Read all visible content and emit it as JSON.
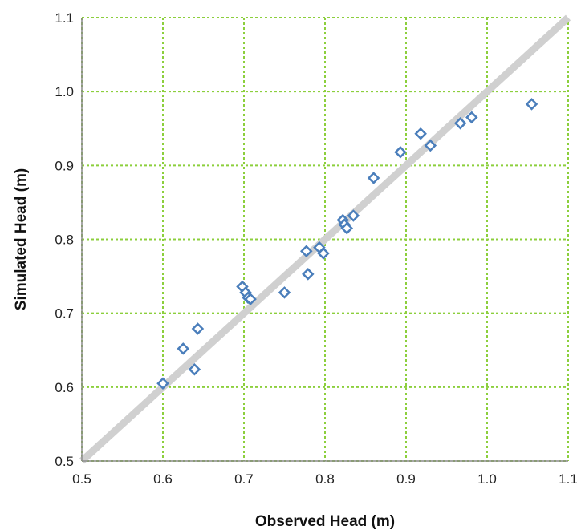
{
  "chart_data": {
    "type": "scatter",
    "title": "",
    "xlabel": "Observed Head (m)",
    "ylabel": "Simulated Head (m)",
    "xlim": [
      0.5,
      1.1
    ],
    "ylim": [
      0.5,
      1.1
    ],
    "x_ticks": [
      "0.5",
      "0.6",
      "0.7",
      "0.8",
      "0.9",
      "1.0",
      "1.1"
    ],
    "y_ticks": [
      "0.5",
      "0.6",
      "0.7",
      "0.8",
      "0.9",
      "1.0",
      "1.1"
    ],
    "grid": true,
    "grid_color": "#8ccf3c",
    "reference_line": {
      "from": [
        0.5,
        0.5
      ],
      "to": [
        1.1,
        1.1
      ],
      "color": "#d0d0d0"
    },
    "marker": "open-diamond",
    "marker_color": "#4a7ebb",
    "points": [
      {
        "x": 0.6,
        "y": 0.605
      },
      {
        "x": 0.625,
        "y": 0.652
      },
      {
        "x": 0.639,
        "y": 0.624
      },
      {
        "x": 0.643,
        "y": 0.679
      },
      {
        "x": 0.698,
        "y": 0.736
      },
      {
        "x": 0.702,
        "y": 0.728
      },
      {
        "x": 0.705,
        "y": 0.721
      },
      {
        "x": 0.708,
        "y": 0.719
      },
      {
        "x": 0.75,
        "y": 0.728
      },
      {
        "x": 0.777,
        "y": 0.784
      },
      {
        "x": 0.779,
        "y": 0.753
      },
      {
        "x": 0.793,
        "y": 0.789
      },
      {
        "x": 0.798,
        "y": 0.781
      },
      {
        "x": 0.822,
        "y": 0.826
      },
      {
        "x": 0.824,
        "y": 0.82
      },
      {
        "x": 0.827,
        "y": 0.815
      },
      {
        "x": 0.835,
        "y": 0.832
      },
      {
        "x": 0.86,
        "y": 0.883
      },
      {
        "x": 0.893,
        "y": 0.918
      },
      {
        "x": 0.918,
        "y": 0.943
      },
      {
        "x": 0.93,
        "y": 0.927
      },
      {
        "x": 0.967,
        "y": 0.957
      },
      {
        "x": 0.981,
        "y": 0.965
      },
      {
        "x": 1.055,
        "y": 0.983
      }
    ]
  }
}
